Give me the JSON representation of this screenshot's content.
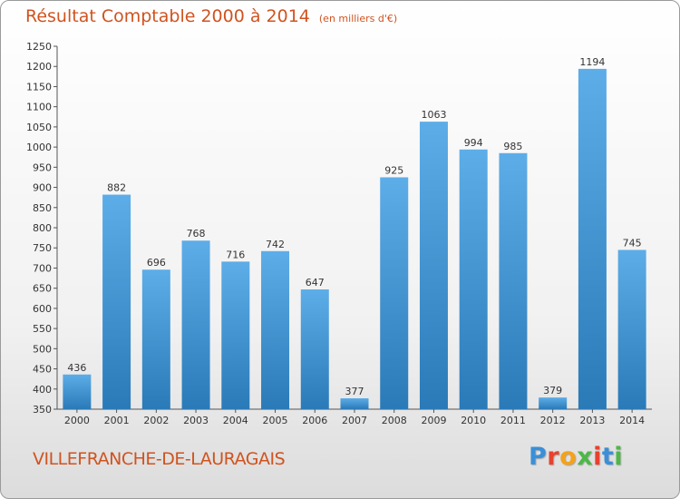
{
  "title": "Résultat Comptable 2000 à 2014",
  "subtitle": "(en milliers d'€)",
  "commune": "VILLEFRANCHE-DE-LAURAGAIS",
  "logo": [
    "P",
    "r",
    "o",
    "x",
    "i",
    "t",
    "i"
  ],
  "colors": {
    "title": "#d0531f",
    "bar_light": "#5dade8",
    "bar_dark": "#2a7ab8",
    "logo": [
      "#3a8fd8",
      "#e8412e",
      "#f4a21b",
      "#4cb848",
      "#e8412e",
      "#3a8fd8",
      "#4cb848"
    ]
  },
  "chart_data": {
    "type": "bar",
    "title": "Résultat Comptable 2000 à 2014",
    "subtitle": "(en milliers d'€)",
    "xlabel": "",
    "ylabel": "",
    "ylim": [
      350,
      1250
    ],
    "yticks": [
      350,
      400,
      450,
      500,
      550,
      600,
      650,
      700,
      750,
      800,
      850,
      900,
      950,
      1000,
      1050,
      1100,
      1150,
      1200,
      1250
    ],
    "grid": false,
    "categories": [
      "2000",
      "2001",
      "2002",
      "2003",
      "2004",
      "2005",
      "2006",
      "2007",
      "2008",
      "2009",
      "2010",
      "2011",
      "2012",
      "2013",
      "2014"
    ],
    "values": [
      436,
      882,
      696,
      768,
      716,
      742,
      647,
      377,
      925,
      1063,
      994,
      985,
      379,
      1194,
      745
    ]
  }
}
